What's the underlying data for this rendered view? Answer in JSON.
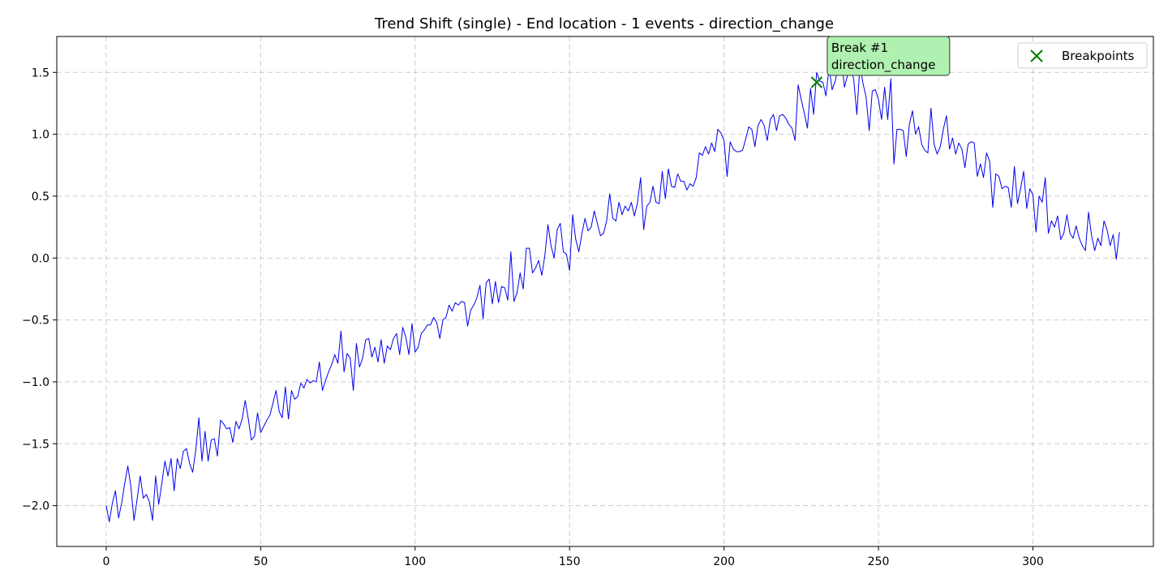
{
  "chart_data": {
    "type": "line",
    "title": "Trend Shift (single) - End location - 1 events - direction_change",
    "xlabel": "",
    "ylabel": "",
    "xlim": [
      -16,
      339
    ],
    "ylim": [
      -2.33,
      1.79
    ],
    "x_ticks": [
      0,
      50,
      100,
      150,
      200,
      250,
      300
    ],
    "y_ticks": [
      -2.0,
      -1.5,
      -1.0,
      -0.5,
      0.0,
      0.5,
      1.0,
      1.5
    ],
    "x_tick_labels": [
      "0",
      "50",
      "100",
      "150",
      "200",
      "250",
      "300"
    ],
    "y_tick_labels": [
      "−2.0",
      "−1.5",
      "−1.0",
      "−0.5",
      "0.0",
      "0.5",
      "1.0",
      "1.5"
    ],
    "grid": true,
    "legend_position": "top-right",
    "series": [
      {
        "color": "#0000ee",
        "x_start": 0,
        "x_step": 1,
        "values": [
          -2.0,
          -2.13,
          -1.98,
          -1.88,
          -2.1,
          -1.98,
          -1.82,
          -1.68,
          -1.85,
          -2.12,
          -1.95,
          -1.76,
          -1.94,
          -1.91,
          -1.97,
          -2.12,
          -1.76,
          -1.99,
          -1.82,
          -1.64,
          -1.76,
          -1.62,
          -1.88,
          -1.62,
          -1.7,
          -1.56,
          -1.54,
          -1.66,
          -1.73,
          -1.55,
          -1.29,
          -1.64,
          -1.4,
          -1.64,
          -1.47,
          -1.46,
          -1.6,
          -1.31,
          -1.34,
          -1.38,
          -1.37,
          -1.49,
          -1.32,
          -1.38,
          -1.3,
          -1.15,
          -1.3,
          -1.47,
          -1.44,
          -1.25,
          -1.41,
          -1.36,
          -1.31,
          -1.27,
          -1.17,
          -1.07,
          -1.24,
          -1.29,
          -1.04,
          -1.3,
          -1.07,
          -1.14,
          -1.12,
          -1.01,
          -1.05,
          -0.98,
          -1.01,
          -0.99,
          -1.0,
          -0.84,
          -1.07,
          -0.99,
          -0.92,
          -0.86,
          -0.78,
          -0.85,
          -0.59,
          -0.92,
          -0.77,
          -0.81,
          -1.07,
          -0.69,
          -0.88,
          -0.81,
          -0.66,
          -0.65,
          -0.8,
          -0.72,
          -0.84,
          -0.66,
          -0.85,
          -0.71,
          -0.74,
          -0.65,
          -0.61,
          -0.78,
          -0.56,
          -0.64,
          -0.78,
          -0.53,
          -0.76,
          -0.72,
          -0.61,
          -0.58,
          -0.54,
          -0.54,
          -0.48,
          -0.52,
          -0.65,
          -0.5,
          -0.48,
          -0.38,
          -0.43,
          -0.36,
          -0.38,
          -0.35,
          -0.36,
          -0.55,
          -0.42,
          -0.38,
          -0.32,
          -0.22,
          -0.49,
          -0.2,
          -0.17,
          -0.37,
          -0.19,
          -0.36,
          -0.23,
          -0.24,
          -0.34,
          0.05,
          -0.35,
          -0.28,
          -0.12,
          -0.25,
          0.08,
          0.08,
          -0.12,
          -0.08,
          -0.02,
          -0.14,
          0.02,
          0.27,
          0.1,
          0.0,
          0.23,
          0.28,
          0.05,
          0.03,
          -0.1,
          0.35,
          0.15,
          0.05,
          0.2,
          0.32,
          0.22,
          0.25,
          0.38,
          0.28,
          0.18,
          0.2,
          0.3,
          0.52,
          0.32,
          0.3,
          0.45,
          0.35,
          0.42,
          0.38,
          0.45,
          0.34,
          0.45,
          0.65,
          0.23,
          0.42,
          0.45,
          0.58,
          0.45,
          0.44,
          0.7,
          0.48,
          0.72,
          0.58,
          0.57,
          0.68,
          0.62,
          0.62,
          0.55,
          0.6,
          0.58,
          0.65,
          0.85,
          0.83,
          0.9,
          0.84,
          0.93,
          0.86,
          1.04,
          1.01,
          0.95,
          0.66,
          0.94,
          0.88,
          0.86,
          0.86,
          0.87,
          0.96,
          1.06,
          1.04,
          0.9,
          1.07,
          1.12,
          1.07,
          0.95,
          1.12,
          1.16,
          1.03,
          1.15,
          1.16,
          1.13,
          1.08,
          1.05,
          0.95,
          1.4,
          1.28,
          1.17,
          1.05,
          1.37,
          1.16,
          1.5,
          1.43,
          1.42,
          1.31,
          1.54,
          1.36,
          1.43,
          1.55,
          1.61,
          1.38,
          1.48,
          1.55,
          1.44,
          1.16,
          1.56,
          1.41,
          1.3,
          1.03,
          1.35,
          1.36,
          1.28,
          1.12,
          1.38,
          1.12,
          1.45,
          0.76,
          1.04,
          1.04,
          1.03,
          0.82,
          1.08,
          1.19,
          1.0,
          1.06,
          0.92,
          0.87,
          0.85,
          1.21,
          0.92,
          0.84,
          0.9,
          1.04,
          1.15,
          0.88,
          0.97,
          0.84,
          0.93,
          0.88,
          0.73,
          0.92,
          0.94,
          0.93,
          0.66,
          0.76,
          0.65,
          0.85,
          0.78,
          0.41,
          0.68,
          0.66,
          0.56,
          0.58,
          0.57,
          0.41,
          0.74,
          0.44,
          0.56,
          0.7,
          0.4,
          0.56,
          0.51,
          0.21,
          0.5,
          0.45,
          0.65,
          0.2,
          0.3,
          0.25,
          0.34,
          0.15,
          0.2,
          0.35,
          0.2,
          0.16,
          0.26,
          0.16,
          0.1,
          0.06,
          0.37,
          0.18,
          0.06,
          0.16,
          0.1,
          0.3,
          0.23,
          0.1,
          0.19,
          -0.01,
          0.21
        ]
      }
    ],
    "breakpoints": [
      {
        "x": 230,
        "y": 1.42,
        "annotation_line1": "Break #1",
        "annotation_line2": "direction_change"
      }
    ],
    "legend": {
      "label": "Breakpoints",
      "marker_color": "#007f00"
    },
    "annotation_bg": "#b0f0b0"
  }
}
